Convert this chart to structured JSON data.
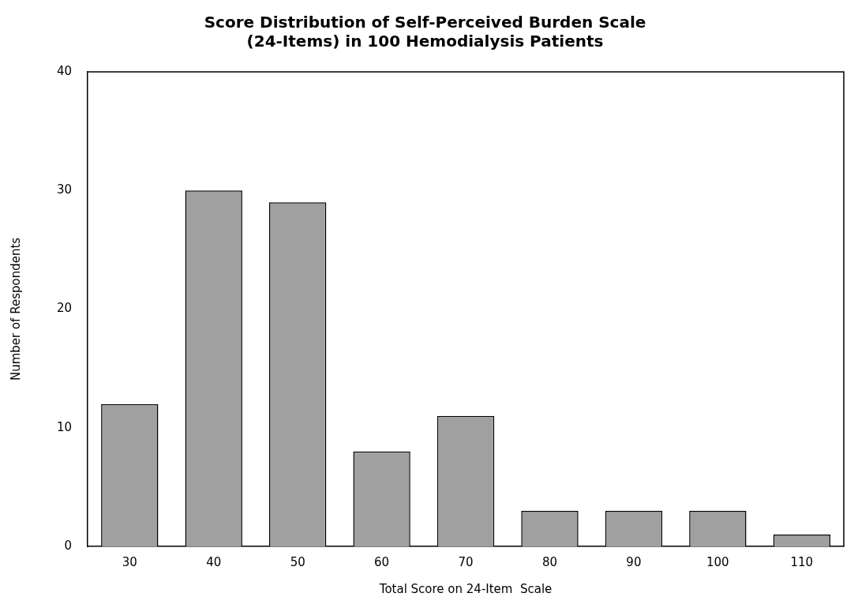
{
  "chart_data": {
    "type": "bar",
    "title": "Score Distribution of Self-Perceived Burden Scale\n(24-Items) in 100 Hemodialysis Patients",
    "xlabel": "Total Score on 24-Item  Scale",
    "ylabel": "Number of Respondents",
    "categories": [
      "30",
      "40",
      "50",
      "60",
      "70",
      "80",
      "90",
      "100",
      "110"
    ],
    "values": [
      12,
      30,
      29,
      8,
      11,
      3,
      3,
      3,
      1
    ],
    "color": "#a0a0a0",
    "ylim": [
      0,
      40
    ],
    "yticks": [
      0,
      10,
      20,
      30,
      40
    ],
    "grid": false,
    "legend": false
  }
}
